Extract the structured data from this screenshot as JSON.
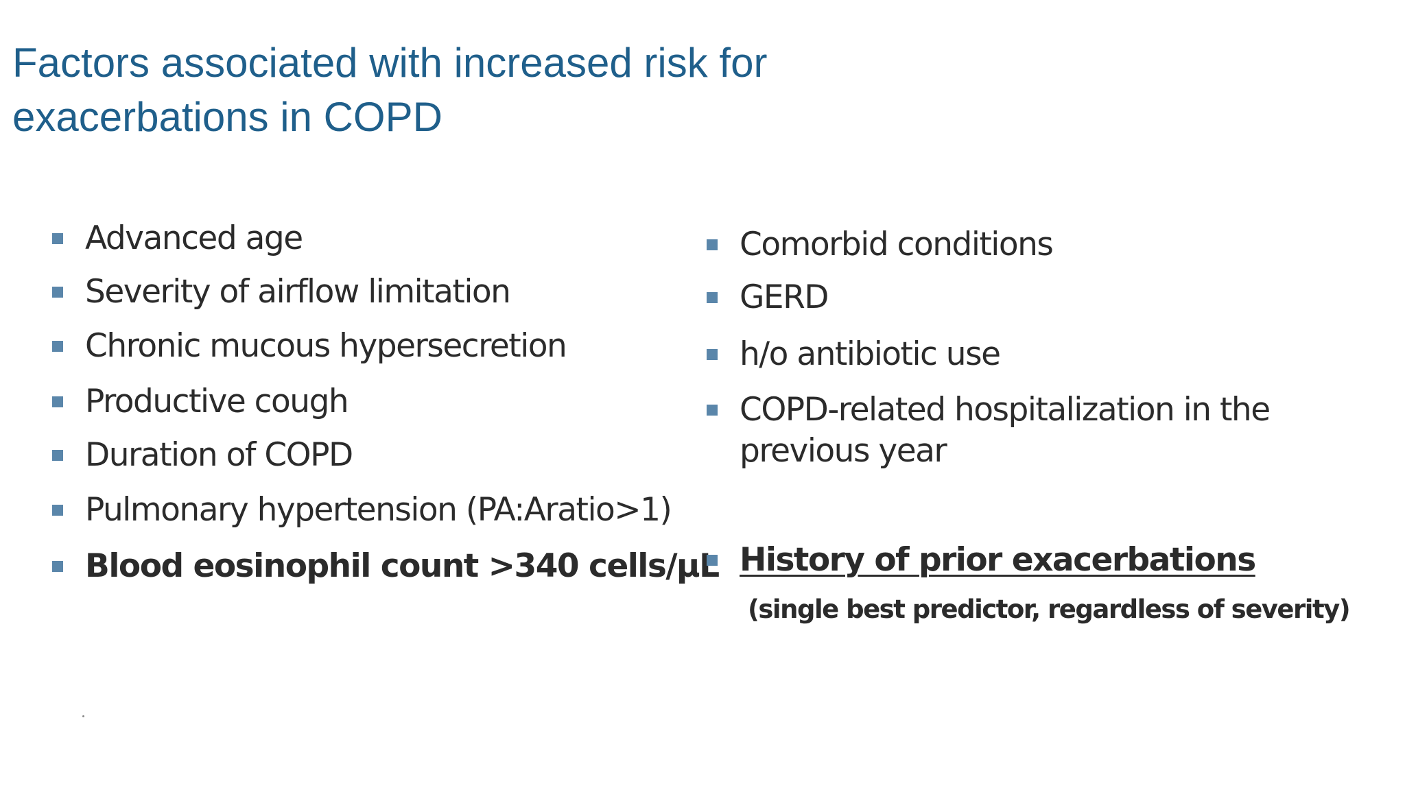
{
  "title": "Factors associated with increased risk for exacerbations in COPD",
  "left_column": {
    "items": [
      "Advanced age",
      "Severity of airflow limitation",
      "Chronic mucous hypersecretion",
      "Productive cough",
      "Duration of COPD",
      "Pulmonary hypertension (PA:Aratio>1)",
      "Blood eosinophil count >340 cells/μL"
    ]
  },
  "right_column": {
    "items": [
      "Comorbid conditions",
      "GERD",
      "h/o antibiotic use",
      "COPD-related hospitalization in the previous year",
      "History of prior exacerbations"
    ],
    "note": "(single best predictor, regardless of severity)"
  },
  "colors": {
    "title": "#1f5f8b",
    "bullet": "#5a86aa",
    "text": "#2b2b2b"
  }
}
